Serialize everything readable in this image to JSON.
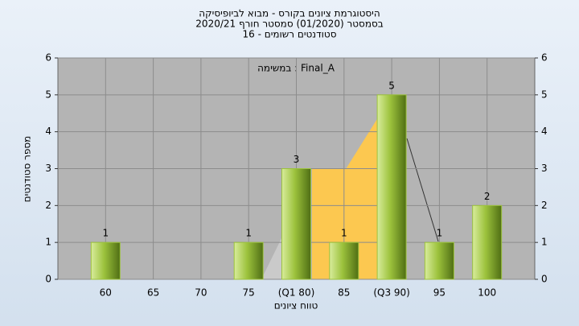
{
  "chart_data": {
    "type": "bar",
    "title": [
      "היסטוגרמת ציונים בקורס - מבוא לביופיסיקה",
      "בסמסטר (01/2020)  סמסטר חורף 2020/21",
      "סטודנטים רשומים - 16"
    ],
    "annotation": "במשימה : Final_A",
    "x_label": "טווח ציונים",
    "y_label": "מספר סטודנטים",
    "categories": [
      "60",
      "65",
      "70",
      "75",
      "(Q1 80)",
      "85",
      "(Q3 90)",
      "95",
      "100"
    ],
    "values": [
      1,
      0,
      0,
      1,
      3,
      1,
      5,
      1,
      2
    ],
    "color": "#9cc23c",
    "ylim": [
      0,
      6
    ],
    "yticks": [
      0,
      1,
      2,
      3,
      4,
      5,
      6
    ],
    "grid": true
  }
}
